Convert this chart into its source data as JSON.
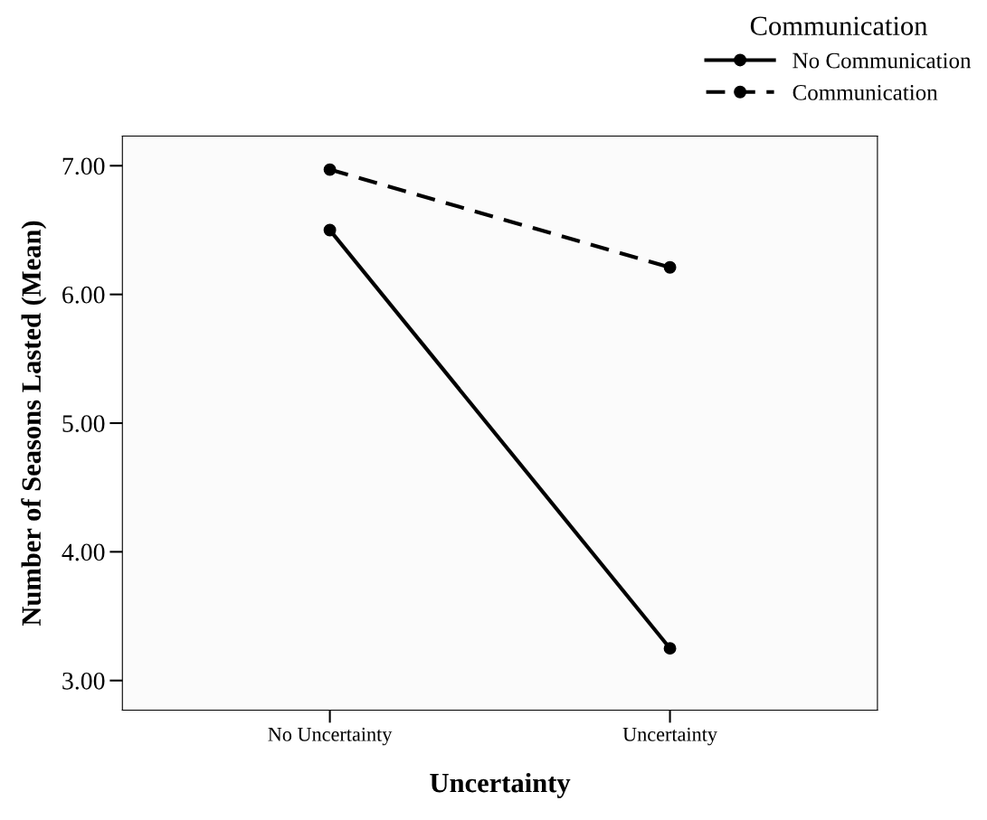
{
  "chart_data": {
    "type": "line",
    "xlabel": "Uncertainty",
    "ylabel": "Number of Seasons Lasted (Mean)",
    "legend_title": "Communication",
    "categories": [
      "No Uncertainty",
      "Uncertainty"
    ],
    "series": [
      {
        "name": "No Communication",
        "color": "#000000",
        "values": [
          6.5,
          3.25
        ],
        "line_style": "solid"
      },
      {
        "name": "Communication",
        "color": "#000000",
        "values": [
          6.97,
          6.21
        ],
        "line_style": "dashed"
      }
    ],
    "ylim": [
      2.77,
      7.23
    ],
    "yticks": [
      {
        "value": 3,
        "label": "3.00"
      },
      {
        "value": 4,
        "label": "4.00"
      },
      {
        "value": 5,
        "label": "5.00"
      },
      {
        "value": 6,
        "label": "6.00"
      },
      {
        "value": 7,
        "label": "7.00"
      }
    ],
    "marker": "circle",
    "legend": "top right",
    "grid": false
  }
}
